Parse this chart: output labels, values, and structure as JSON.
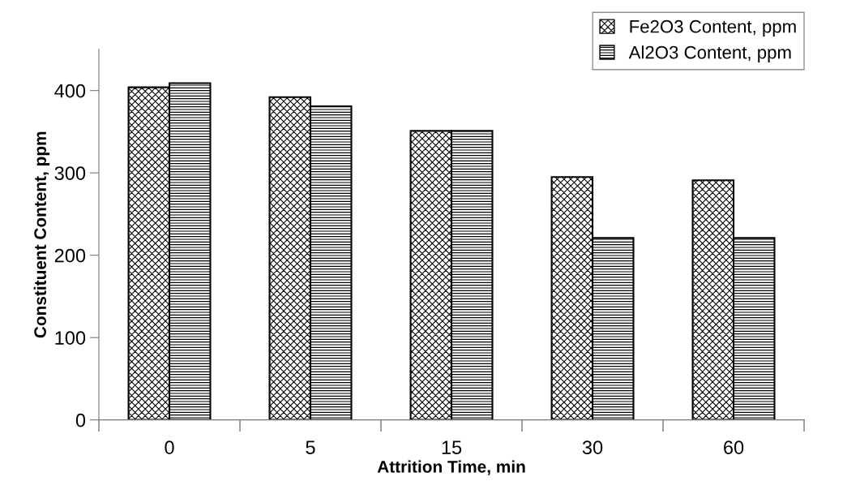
{
  "chart_data": {
    "type": "bar",
    "xlabel": "Attrition Time, min",
    "ylabel": "Constituent Content, ppm",
    "categories": [
      "0",
      "5",
      "15",
      "30",
      "60"
    ],
    "series": [
      {
        "name": "Fe2O3 Content, ppm",
        "color": "#000000",
        "values": [
          404,
          392,
          351,
          295,
          291
        ]
      },
      {
        "name": "Al2O3 Content, ppm",
        "color": "#000000",
        "values": [
          409,
          381,
          351,
          221,
          221
        ]
      }
    ],
    "ylim": [
      0,
      450
    ],
    "yticks": [
      0,
      100,
      200,
      300,
      400
    ],
    "grid": false,
    "legend": "top right"
  }
}
